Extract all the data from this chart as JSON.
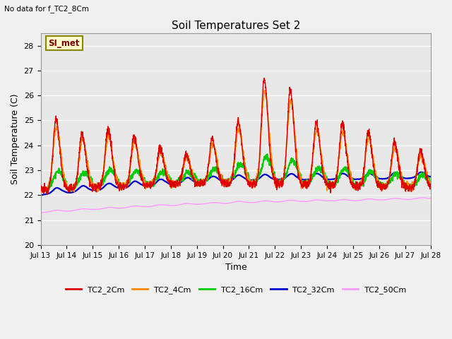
{
  "title": "Soil Temperatures Set 2",
  "subtitle": "No data for f_TC2_8Cm",
  "xlabel": "Time",
  "ylabel": "Soil Temperature (C)",
  "ylim": [
    20.0,
    28.5
  ],
  "yticks": [
    20.0,
    21.0,
    22.0,
    23.0,
    24.0,
    25.0,
    26.0,
    27.0,
    28.0
  ],
  "xtick_labels": [
    "Jul 13",
    "Jul 14",
    "Jul 15",
    "Jul 16",
    "Jul 17",
    "Jul 18",
    "Jul 19",
    "Jul 20",
    "Jul 21",
    "Jul 22",
    "Jul 23",
    "Jul 24",
    "Jul 25",
    "Jul 26",
    "Jul 27",
    "Jul 28"
  ],
  "legend_label": "SI_met",
  "bg_color": "#e8e8e8",
  "fig_bg": "#f0f0f0",
  "line_colors": {
    "TC2_2Cm": "#dd0000",
    "TC2_4Cm": "#ff8800",
    "TC2_16Cm": "#00cc00",
    "TC2_32Cm": "#0000cc",
    "TC2_50Cm": "#ff99ff"
  }
}
